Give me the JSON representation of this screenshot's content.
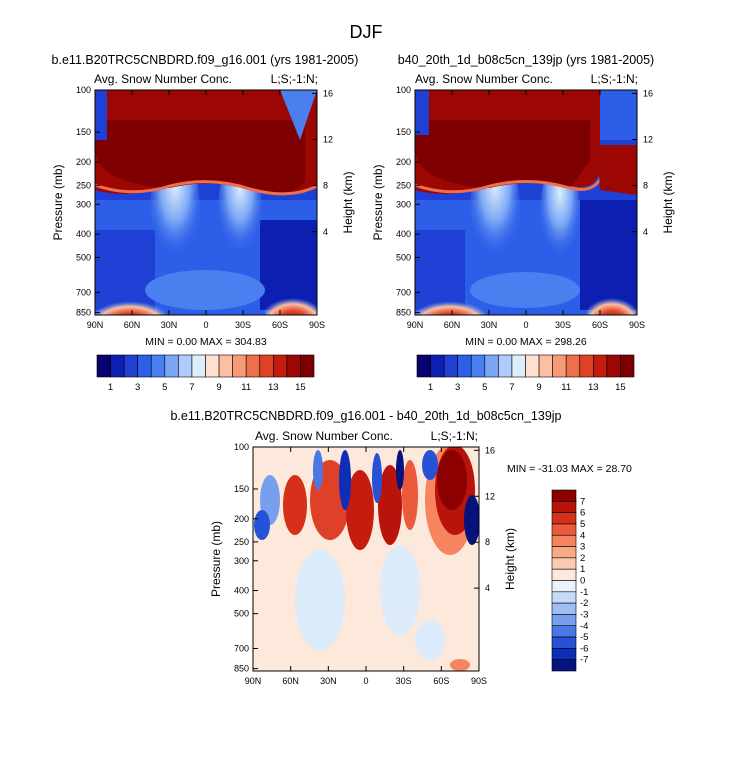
{
  "figure_title": "DJF",
  "chart_data": [
    {
      "type": "heatmap",
      "id": "left",
      "title": "b.e11.B20TRC5CNBDRD.f09_g16.001 (yrs 1981-2005)",
      "subtitle_left": "Avg. Snow Number Conc.",
      "subtitle_right": "L;S;-1:N;",
      "xlabel": "",
      "ylabel": "Pressure (mb)",
      "ylabel_right": "Height (km)",
      "x_ticks": [
        "90N",
        "60N",
        "30N",
        "0",
        "30S",
        "60S",
        "90S"
      ],
      "y_ticks": [
        "100",
        "150",
        "200",
        "250",
        "300",
        "400",
        "500",
        "700",
        "850"
      ],
      "y_right_ticks": [
        "16",
        "12",
        "8",
        "4"
      ],
      "min_max_text": "MIN =   0.00   MAX = 304.83",
      "colorbar_labels": [
        "1",
        "3",
        "5",
        "7",
        "9",
        "11",
        "13",
        "15"
      ],
      "colorbar_colors": [
        "#08006e",
        "#0d1fb0",
        "#1f40d4",
        "#2d5ee8",
        "#4a7ff0",
        "#7aa6f5",
        "#aecdfa",
        "#dceefc",
        "#fde0cf",
        "#fbbfa2",
        "#f79b77",
        "#ef6e4c",
        "#de4128",
        "#c41d10",
        "#9c0704",
        "#7e0000"
      ],
      "colorbar_range": [
        0,
        16
      ]
    },
    {
      "type": "heatmap",
      "id": "right",
      "title": "b40_20th_1d_b08c5cn_139jp (yrs 1981-2005)",
      "subtitle_left": "Avg. Snow Number Conc.",
      "subtitle_right": "L;S;-1:N;",
      "xlabel": "",
      "ylabel": "Pressure (mb)",
      "ylabel_right": "Height (km)",
      "x_ticks": [
        "90N",
        "60N",
        "30N",
        "0",
        "30S",
        "60S",
        "90S"
      ],
      "y_ticks": [
        "100",
        "150",
        "200",
        "250",
        "300",
        "400",
        "500",
        "700",
        "850"
      ],
      "y_right_ticks": [
        "16",
        "12",
        "8",
        "4"
      ],
      "min_max_text": "MIN =   0.00   MAX = 298.26",
      "colorbar_labels": [
        "1",
        "3",
        "5",
        "7",
        "9",
        "11",
        "13",
        "15"
      ],
      "colorbar_colors": [
        "#08006e",
        "#0d1fb0",
        "#1f40d4",
        "#2d5ee8",
        "#4a7ff0",
        "#7aa6f5",
        "#aecdfa",
        "#dceefc",
        "#fde0cf",
        "#fbbfa2",
        "#f79b77",
        "#ef6e4c",
        "#de4128",
        "#c41d10",
        "#9c0704",
        "#7e0000"
      ],
      "colorbar_range": [
        0,
        16
      ]
    },
    {
      "type": "heatmap",
      "id": "diff",
      "title": "b.e11.B20TRC5CNBDRD.f09_g16.001 - b40_20th_1d_b08c5cn_139jp",
      "subtitle_left": "Avg. Snow Number Conc.",
      "subtitle_right": "L;S;-1:N;",
      "xlabel": "",
      "ylabel": "Pressure (mb)",
      "ylabel_right": "Height (km)",
      "x_ticks": [
        "90N",
        "60N",
        "30N",
        "0",
        "30S",
        "60S",
        "90S"
      ],
      "y_ticks": [
        "100",
        "150",
        "200",
        "250",
        "300",
        "400",
        "500",
        "700",
        "850"
      ],
      "y_right_ticks": [
        "16",
        "12",
        "8",
        "4"
      ],
      "min_max_text": "MIN = -31.03   MAX =  28.70",
      "colorbar_labels": [
        "7",
        "6",
        "5",
        "4",
        "3",
        "2",
        "1",
        "0",
        "-1",
        "-2",
        "-3",
        "-4",
        "-5",
        "-6",
        "-7"
      ],
      "colorbar_colors": [
        "#8c0000",
        "#b8140b",
        "#d6301a",
        "#eb5a3a",
        "#f5845f",
        "#f9a986",
        "#fccab0",
        "#fde8dc",
        "#eaf2fb",
        "#c7dbf8",
        "#9fbff3",
        "#779fee",
        "#4c78e6",
        "#2552d6",
        "#0d2fb8",
        "#07137d"
      ],
      "colorbar_range": [
        -8,
        8
      ]
    }
  ]
}
